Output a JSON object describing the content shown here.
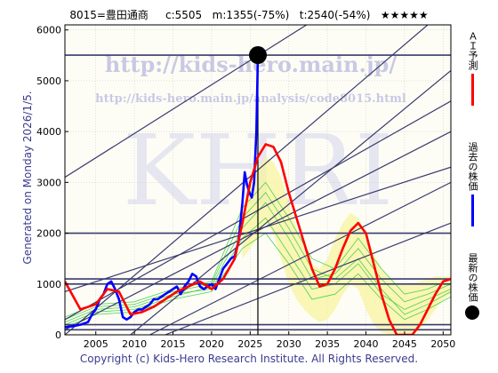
{
  "header": {
    "code_name": "8015=豊田通商",
    "current": "c:5505",
    "min_pred": "m:1355(-75%)",
    "target": "t:2540(-54%)",
    "rating": "★★★★★"
  },
  "watermark": {
    "url_large": "http://kids-hero.main.jp/",
    "url_small": "http://kids-hero.main.jp/analysis/code8015.html",
    "brand": "KHRI"
  },
  "side_text": "Generated on Monday 2026/1/5.",
  "footer": "Copyright (c) Kids-Hero Research Institute. All Rights Reserved.",
  "legend": [
    {
      "label": "ＡＩ予測",
      "color": "#ff0000",
      "kind": "line"
    },
    {
      "label": "過去の株価",
      "color": "#0000ff",
      "kind": "line"
    },
    {
      "label": "最新の株価",
      "color": "#000000",
      "kind": "dot"
    }
  ],
  "chart_data": {
    "type": "line",
    "xlim": [
      2001,
      2051
    ],
    "ylim": [
      0,
      6100
    ],
    "x_ticks": [
      2005,
      2010,
      2015,
      2020,
      2025,
      2030,
      2035,
      2040,
      2045,
      2050
    ],
    "y_ticks": [
      0,
      1000,
      2000,
      3000,
      4000,
      5000,
      6000
    ],
    "grid": true,
    "legend_position": "right-outside",
    "latest_point": {
      "x": 2026.0,
      "y": 5505
    },
    "horizontal_levels": [
      5505,
      2000,
      1100,
      1000,
      200,
      100
    ],
    "vertical_marker_x": 2026.0,
    "series": [
      {
        "name": "過去の株価",
        "color": "#0000ff",
        "x": [
          2001.0,
          2002.0,
          2003.0,
          2004.0,
          2004.5,
          2005.0,
          2005.5,
          2006.0,
          2006.5,
          2007.0,
          2007.5,
          2008.0,
          2008.5,
          2009.0,
          2009.5,
          2010.0,
          2010.5,
          2011.0,
          2011.5,
          2012.0,
          2012.5,
          2013.0,
          2013.5,
          2014.0,
          2014.5,
          2015.0,
          2015.5,
          2016.0,
          2016.5,
          2017.0,
          2017.5,
          2018.0,
          2018.5,
          2019.0,
          2019.5,
          2020.0,
          2020.5,
          2021.0,
          2021.5,
          2022.0,
          2022.5,
          2023.0,
          2023.5,
          2024.0,
          2024.3,
          2024.6,
          2024.9,
          2025.2,
          2025.5,
          2025.8,
          2026.0
        ],
        "y": [
          150,
          170,
          200,
          250,
          400,
          500,
          700,
          800,
          1000,
          1050,
          900,
          700,
          350,
          300,
          350,
          450,
          500,
          500,
          550,
          600,
          700,
          700,
          750,
          800,
          850,
          900,
          950,
          800,
          950,
          1050,
          1200,
          1150,
          950,
          900,
          950,
          1000,
          900,
          1100,
          1300,
          1400,
          1500,
          1550,
          1850,
          2600,
          3200,
          2950,
          2800,
          2700,
          3000,
          4000,
          5505
        ]
      },
      {
        "name": "ＡＩ予測",
        "color": "#ff0000",
        "x": [
          2001.0,
          2003.0,
          2005.0,
          2006.5,
          2008.0,
          2009.5,
          2011.0,
          2012.5,
          2014.0,
          2015.5,
          2017.0,
          2018.5,
          2020.0,
          2021.5,
          2023.0,
          2024.0,
          2025.0,
          2026.0,
          2027.0,
          2028.0,
          2029.0,
          2030.0,
          2031.0,
          2032.0,
          2033.0,
          2034.0,
          2035.0,
          2036.0,
          2037.0,
          2038.0,
          2039.0,
          2040.0,
          2041.0,
          2042.0,
          2043.0,
          2044.0,
          2045.0,
          2046.0,
          2047.0,
          2048.0,
          2049.0,
          2050.0,
          2051.0
        ],
        "y": [
          1050,
          500,
          600,
          900,
          850,
          400,
          450,
          550,
          700,
          850,
          950,
          1050,
          900,
          1100,
          1500,
          2200,
          3000,
          3500,
          3750,
          3700,
          3400,
          2800,
          2300,
          1800,
          1300,
          950,
          1000,
          1300,
          1700,
          2050,
          2200,
          2000,
          1400,
          800,
          300,
          0,
          0,
          0,
          200,
          500,
          800,
          1050,
          1100
        ]
      }
    ],
    "forecast_band": {
      "x": [
        2024.0,
        2025.0,
        2026.0,
        2027.0,
        2028.0,
        2029.0,
        2030.0,
        2031.0,
        2032.0,
        2033.0,
        2034.0,
        2035.0,
        2036.0,
        2037.0,
        2038.0,
        2039.0,
        2040.0,
        2041.0,
        2042.0,
        2043.0,
        2044.0,
        2045.0,
        2046.0,
        2047.0,
        2048.0,
        2049.0,
        2050.0,
        2051.0
      ],
      "upper": [
        2400,
        2900,
        3300,
        3500,
        3400,
        3100,
        2600,
        2100,
        1700,
        1400,
        1300,
        1500,
        1900,
        2200,
        2400,
        2300,
        2000,
        1600,
        1300,
        1100,
        1000,
        1000,
        1000,
        1050,
        1100,
        1150,
        1150,
        1150
      ],
      "lower": [
        1500,
        1700,
        1900,
        2200,
        2000,
        1500,
        1000,
        700,
        500,
        350,
        250,
        300,
        500,
        800,
        1000,
        900,
        500,
        200,
        50,
        0,
        0,
        0,
        0,
        100,
        300,
        500,
        700,
        800
      ]
    },
    "green_lines": [
      {
        "x": [
          2001,
          2005,
          2010,
          2015,
          2020,
          2024,
          2027,
          2030,
          2033,
          2036,
          2039,
          2042,
          2045,
          2048,
          2051
        ],
        "y": [
          250,
          500,
          550,
          800,
          900,
          1900,
          2300,
          1600,
          900,
          1000,
          1400,
          800,
          500,
          700,
          900
        ]
      },
      {
        "x": [
          2001,
          2005,
          2010,
          2015,
          2020,
          2024,
          2027,
          2030,
          2033,
          2036,
          2039,
          2042,
          2045,
          2048,
          2051
        ],
        "y": [
          200,
          450,
          500,
          750,
          950,
          2100,
          2600,
          1900,
          1100,
          1200,
          1700,
          1100,
          650,
          800,
          1000
        ]
      },
      {
        "x": [
          2001,
          2005,
          2010,
          2015,
          2020,
          2024,
          2027,
          2030,
          2033,
          2036,
          2039,
          2042,
          2045,
          2048,
          2051
        ],
        "y": [
          300,
          550,
          600,
          850,
          1000,
          2300,
          2800,
          2100,
          1300,
          1100,
          1500,
          900,
          400,
          600,
          850
        ]
      },
      {
        "x": [
          2001,
          2005,
          2010,
          2015,
          2020,
          2024,
          2027,
          2030,
          2033,
          2036,
          2039,
          2042,
          2045,
          2048,
          2051
        ],
        "y": [
          150,
          400,
          450,
          700,
          850,
          1700,
          2000,
          1400,
          700,
          800,
          1200,
          700,
          300,
          500,
          750
        ]
      },
      {
        "x": [
          2001,
          2005,
          2010,
          2015,
          2020,
          2024,
          2027,
          2030,
          2033,
          2036,
          2039,
          2042,
          2045,
          2048,
          2051
        ],
        "y": [
          350,
          600,
          650,
          900,
          1050,
          2500,
          3000,
          2300,
          1500,
          1300,
          1900,
          1300,
          800,
          900,
          1100
        ]
      }
    ],
    "trend_lines": [
      {
        "x": [
          2001,
          2032.3
        ],
        "y": [
          3100,
          6100
        ]
      },
      {
        "x": [
          2001,
          2048
        ],
        "y": [
          0,
          6100
        ]
      },
      {
        "x": [
          2009.5,
          2051
        ],
        "y": [
          0,
          5200
        ]
      },
      {
        "x": [
          2001,
          2051
        ],
        "y": [
          300,
          4600
        ]
      },
      {
        "x": [
          2001,
          2051
        ],
        "y": [
          100,
          4000
        ]
      },
      {
        "x": [
          2012,
          2051
        ],
        "y": [
          0,
          3000
        ]
      },
      {
        "x": [
          2014,
          2051
        ],
        "y": [
          0,
          2200
        ]
      },
      {
        "x": [
          2001,
          2051
        ],
        "y": [
          850,
          3300
        ]
      }
    ]
  }
}
